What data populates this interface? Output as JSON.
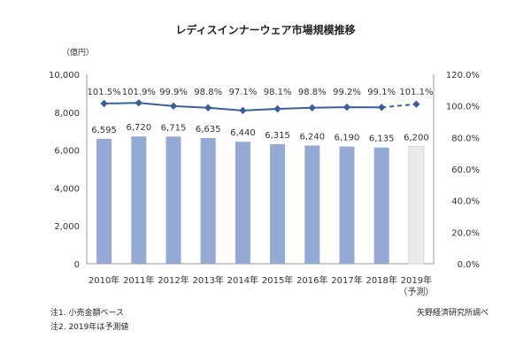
{
  "chart_data": {
    "type": "bar+line",
    "title": "レディスインナーウェア市場規模推移",
    "y_unit": "（億円）",
    "categories": [
      "2010年",
      "2011年",
      "2012年",
      "2013年",
      "2014年",
      "2015年",
      "2016年",
      "2017年",
      "2018年",
      "2019年"
    ],
    "category_sublabels": [
      "",
      "",
      "",
      "",
      "",
      "",
      "",
      "",
      "",
      "（予測）"
    ],
    "bars": {
      "values": [
        6595,
        6720,
        6715,
        6635,
        6440,
        6315,
        6240,
        6190,
        6135,
        6200
      ],
      "value_labels": [
        "6,595",
        "6,720",
        "6,715",
        "6,635",
        "6,440",
        "6,315",
        "6,240",
        "6,190",
        "6,135",
        "6,200"
      ],
      "color": "#94a9d4",
      "forecast_color": "#ebebeb",
      "forecast_index": 9
    },
    "line": {
      "values": [
        101.5,
        101.9,
        99.9,
        98.8,
        97.1,
        98.1,
        98.8,
        99.2,
        99.1,
        101.1
      ],
      "value_labels": [
        "101.5%",
        "101.9%",
        "99.9%",
        "98.8%",
        "97.1%",
        "98.1%",
        "98.8%",
        "99.2%",
        "99.1%",
        "101.1%"
      ],
      "color": "#3b5f9a",
      "forecast_dashed_from": 8
    },
    "y_left": {
      "min": 0,
      "max": 10000,
      "ticks": [
        0,
        2000,
        4000,
        6000,
        8000,
        10000
      ],
      "tick_labels": [
        "0",
        "2,000",
        "4,000",
        "6,000",
        "8,000",
        "10,000"
      ]
    },
    "y_right": {
      "min": 0,
      "max": 120,
      "ticks": [
        0,
        20,
        40,
        60,
        80,
        100,
        120
      ],
      "tick_labels": [
        "0.0%",
        "20.0%",
        "40.0%",
        "60.0%",
        "80.0%",
        "100.0%",
        "120.0%"
      ]
    }
  },
  "notes": {
    "note1": "注1. 小売金額ベース",
    "note2": "注2. 2019年は予測値",
    "source": "矢野経済研究所調べ"
  }
}
